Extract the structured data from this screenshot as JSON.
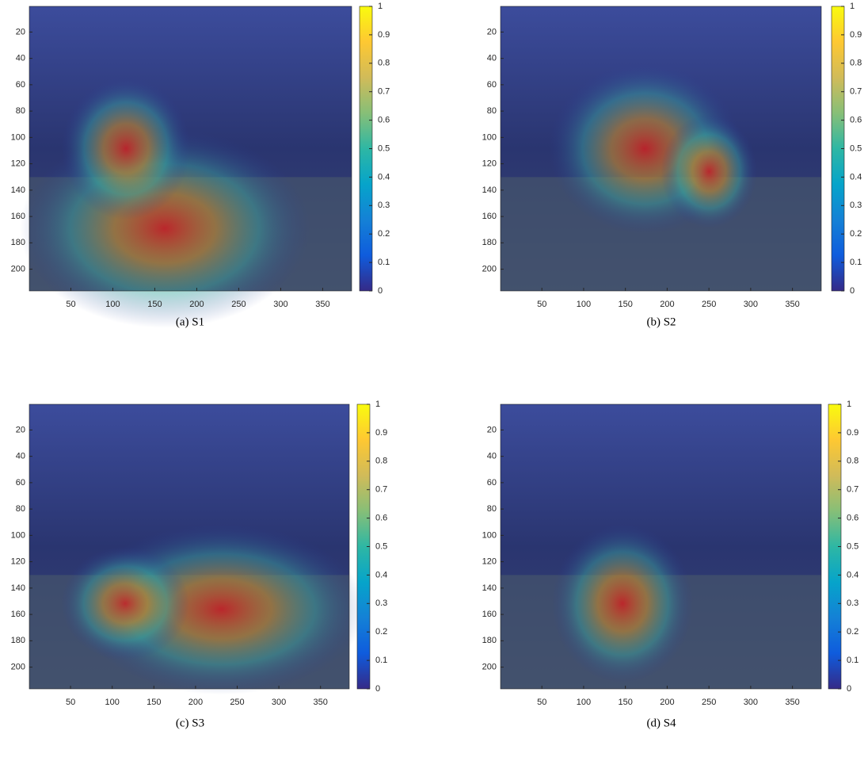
{
  "chart_data": [
    {
      "type": "heatmap",
      "caption": "(a) S1",
      "xlim": [
        0.5,
        384.5
      ],
      "ylim": [
        0.5,
        216.5
      ],
      "xticks": [
        50,
        100,
        150,
        200,
        250,
        300,
        350
      ],
      "yticks": [
        20,
        40,
        60,
        80,
        100,
        120,
        140,
        160,
        180,
        200
      ],
      "colormap": "parula",
      "clim": [
        0,
        1
      ],
      "cticks": [
        0,
        0.1,
        0.2,
        0.3,
        0.4,
        0.5,
        0.6,
        0.7,
        0.8,
        0.9,
        1
      ]
    },
    {
      "type": "heatmap",
      "caption": "(b) S2",
      "xlim": [
        0.5,
        384.5
      ],
      "ylim": [
        0.5,
        216.5
      ],
      "xticks": [
        50,
        100,
        150,
        200,
        250,
        300,
        350
      ],
      "yticks": [
        20,
        40,
        60,
        80,
        100,
        120,
        140,
        160,
        180,
        200
      ],
      "colormap": "parula",
      "clim": [
        0,
        1
      ],
      "cticks": [
        0,
        0.1,
        0.2,
        0.3,
        0.4,
        0.5,
        0.6,
        0.7,
        0.8,
        0.9,
        1
      ]
    },
    {
      "type": "heatmap",
      "caption": "(c) S3",
      "xlim": [
        0.5,
        384.5
      ],
      "ylim": [
        0.5,
        216.5
      ],
      "xticks": [
        50,
        100,
        150,
        200,
        250,
        300,
        350
      ],
      "yticks": [
        20,
        40,
        60,
        80,
        100,
        120,
        140,
        160,
        180,
        200
      ],
      "colormap": "parula",
      "clim": [
        0,
        1
      ],
      "cticks": [
        0,
        0.1,
        0.2,
        0.3,
        0.4,
        0.5,
        0.6,
        0.7,
        0.8,
        0.9,
        1
      ]
    },
    {
      "type": "heatmap",
      "caption": "(d) S4",
      "xlim": [
        0.5,
        384.5
      ],
      "ylim": [
        0.5,
        216.5
      ],
      "xticks": [
        50,
        100,
        150,
        200,
        250,
        300,
        350
      ],
      "yticks": [
        20,
        40,
        60,
        80,
        100,
        120,
        140,
        160,
        180,
        200
      ],
      "colormap": "parula",
      "clim": [
        0,
        1
      ],
      "cticks": [
        0,
        0.1,
        0.2,
        0.3,
        0.4,
        0.5,
        0.6,
        0.7,
        0.8,
        0.9,
        1
      ]
    }
  ]
}
